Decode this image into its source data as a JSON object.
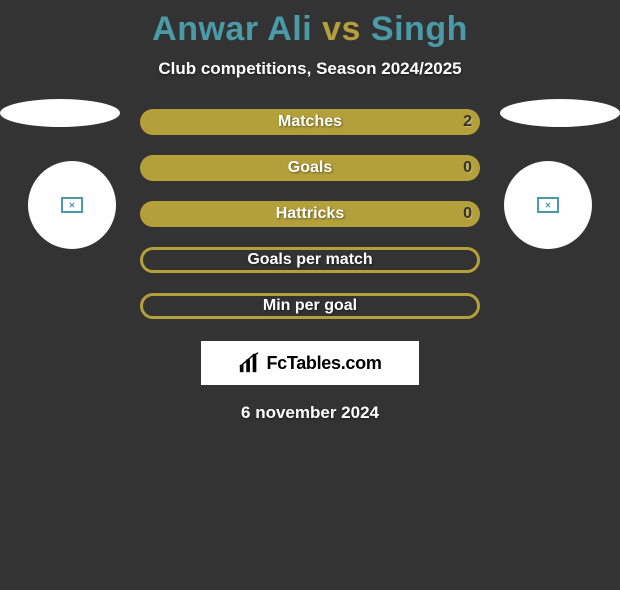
{
  "title": {
    "player1": "Anwar Ali",
    "vs": "vs",
    "player2": "Singh",
    "player1_color": "#4a9aa8",
    "vs_color": "#b4a03a",
    "player2_color": "#4a9aa8"
  },
  "subtitle": "Club competitions, Season 2024/2025",
  "badge_left": {
    "border_color": "#4a9aa8"
  },
  "badge_right": {
    "border_color": "#4a9aa8"
  },
  "stats": {
    "row_bg_full": "#b4a03a",
    "row_bg_outline": "#b4a03a",
    "rows": [
      {
        "label": "Matches",
        "left": "",
        "right": "2",
        "filled": true,
        "show_left": false,
        "show_right": true
      },
      {
        "label": "Goals",
        "left": "",
        "right": "0",
        "filled": true,
        "show_left": false,
        "show_right": true
      },
      {
        "label": "Hattricks",
        "left": "",
        "right": "0",
        "filled": true,
        "show_left": false,
        "show_right": true
      },
      {
        "label": "Goals per match",
        "left": "",
        "right": "",
        "filled": false,
        "show_left": false,
        "show_right": false
      },
      {
        "label": "Min per goal",
        "left": "",
        "right": "",
        "filled": false,
        "show_left": false,
        "show_right": false
      }
    ]
  },
  "logo": {
    "text": "FcTables.com"
  },
  "date": "6 november 2024",
  "background_color": "#333333"
}
